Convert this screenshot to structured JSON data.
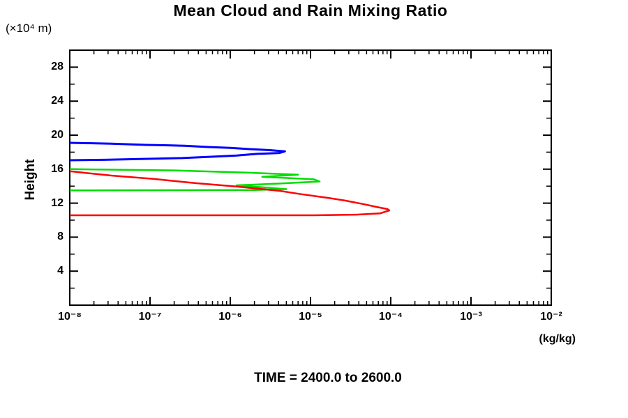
{
  "chart_data": {
    "type": "line",
    "title": "Mean Cloud and Rain Mixing Ratio",
    "y_unit_label": "(×10⁴ m)",
    "ylabel": "Height",
    "xlabel": "(kg/kg)",
    "footer": "TIME = 2400.0 to 2600.0",
    "x_scale": "log",
    "xlim": [
      1e-08,
      0.01
    ],
    "ylim": [
      0,
      30
    ],
    "x_ticks": [
      {
        "exp": -8,
        "label": "10⁻⁸"
      },
      {
        "exp": -7,
        "label": "10⁻⁷"
      },
      {
        "exp": -6,
        "label": "10⁻⁶"
      },
      {
        "exp": -5,
        "label": "10⁻⁵"
      },
      {
        "exp": -4,
        "label": "10⁻⁴"
      },
      {
        "exp": -3,
        "label": "10⁻³"
      },
      {
        "exp": -2,
        "label": "10⁻²"
      }
    ],
    "y_major_ticks": [
      4,
      8,
      12,
      16,
      20,
      24,
      28
    ],
    "y_minor_ticks": [
      2,
      6,
      10,
      14,
      18,
      22,
      26
    ],
    "grid": false,
    "legend": "none",
    "frame_color": "#000000",
    "series": [
      {
        "name": "blue-profile",
        "color": "#0000ff",
        "stroke_width": 3,
        "points": [
          [
            1e-08,
            19.1
          ],
          [
            3.3e-08,
            19.0
          ],
          [
            9.1e-08,
            18.85
          ],
          [
            1.7e-07,
            18.8
          ],
          [
            2.7e-07,
            18.75
          ],
          [
            5.5e-07,
            18.6
          ],
          [
            1e-06,
            18.5
          ],
          [
            1.8e-06,
            18.35
          ],
          [
            3e-06,
            18.25
          ],
          [
            4.8e-06,
            18.1
          ],
          [
            4.1e-06,
            17.9
          ],
          [
            2.2e-06,
            17.8
          ],
          [
            1.2e-06,
            17.6
          ],
          [
            5.5e-07,
            17.45
          ],
          [
            2.5e-07,
            17.3
          ],
          [
            7.4e-08,
            17.2
          ],
          [
            2.7e-08,
            17.1
          ],
          [
            1e-08,
            17.05
          ]
        ]
      },
      {
        "name": "green-profile",
        "color": "#00dd00",
        "stroke_width": 2.5,
        "points": [
          [
            1e-08,
            16.0
          ],
          [
            2e-07,
            15.85
          ],
          [
            1.6e-06,
            15.6
          ],
          [
            7e-06,
            15.35
          ],
          [
            2.5e-06,
            15.1
          ],
          [
            1.1e-05,
            14.8
          ],
          [
            1.3e-05,
            14.55
          ],
          [
            4e-06,
            14.3
          ],
          [
            1.2e-06,
            14.1
          ],
          [
            5e-06,
            13.65
          ],
          [
            2e-06,
            13.55
          ],
          [
            1e-08,
            13.5
          ]
        ]
      },
      {
        "name": "red-profile",
        "color": "#ff0000",
        "stroke_width": 2.5,
        "points": [
          [
            1e-08,
            15.75
          ],
          [
            3.3e-08,
            15.25
          ],
          [
            1.1e-07,
            14.85
          ],
          [
            3.7e-07,
            14.35
          ],
          [
            1.2e-06,
            13.95
          ],
          [
            4.1e-06,
            13.45
          ],
          [
            7.1e-06,
            13.1
          ],
          [
            1.7e-05,
            12.6
          ],
          [
            2.7e-05,
            12.3
          ],
          [
            4.5e-05,
            11.9
          ],
          [
            6.7e-05,
            11.55
          ],
          [
            9.1e-05,
            11.3
          ],
          [
            9.6e-05,
            11.15
          ],
          [
            7.4e-05,
            10.8
          ],
          [
            3.7e-05,
            10.65
          ],
          [
            1.1e-05,
            10.57
          ],
          [
            1.5e-06,
            10.57
          ],
          [
            7.4e-08,
            10.57
          ],
          [
            1e-08,
            10.57
          ]
        ]
      }
    ]
  }
}
